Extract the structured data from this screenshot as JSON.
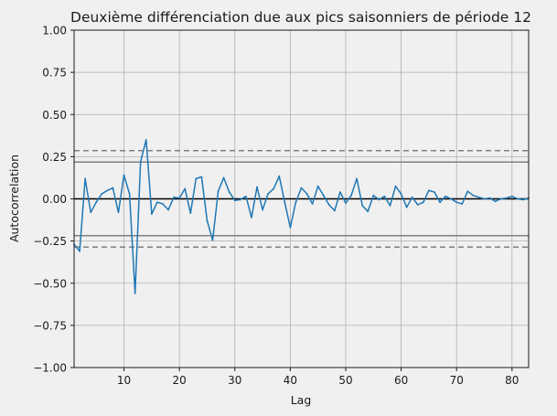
{
  "chart_data": {
    "type": "line",
    "title": "Deuxième différenciation due aux pics saisonniers de période 12",
    "xlabel": "Lag",
    "ylabel": "Autocorrelation",
    "xlim": [
      1,
      83
    ],
    "ylim": [
      -1.0,
      1.0
    ],
    "x_ticks": [
      10,
      20,
      30,
      40,
      50,
      60,
      70,
      80
    ],
    "y_ticks": [
      -1.0,
      -0.75,
      -0.5,
      -0.25,
      0.0,
      0.25,
      0.5,
      0.75,
      1.0
    ],
    "x_tick_labels": [
      "10",
      "20",
      "30",
      "40",
      "50",
      "60",
      "70",
      "80"
    ],
    "y_tick_labels": [
      "−1.00",
      "−0.75",
      "−0.50",
      "−0.25",
      "0.00",
      "0.25",
      "0.50",
      "0.75",
      "1.00"
    ],
    "grid": true,
    "reference_lines": {
      "zero": 0.0,
      "solid": [
        0.218,
        -0.218
      ],
      "dashed": [
        0.286,
        -0.286
      ]
    },
    "colors": {
      "series": "#1f77b4",
      "background": "#f0f0f0",
      "grid": "#b0b0b0",
      "reference": "#808080",
      "zero": "#000000"
    },
    "series": [
      {
        "x": [
          1,
          2,
          3,
          4,
          5,
          6,
          7,
          8,
          9,
          10,
          11,
          12,
          13,
          14,
          15,
          16,
          17,
          18,
          19,
          20,
          21,
          22,
          23,
          24,
          25,
          26,
          27,
          28,
          29,
          30,
          31,
          32,
          33,
          34,
          35,
          36,
          37,
          38,
          39,
          40,
          41,
          42,
          43,
          44,
          45,
          46,
          47,
          48,
          49,
          50,
          51,
          52,
          53,
          54,
          55,
          56,
          57,
          58,
          59,
          60,
          61,
          62,
          63,
          64,
          65,
          66,
          67,
          68,
          69,
          70,
          71,
          72,
          73,
          74,
          75,
          76,
          77,
          78,
          79,
          80,
          81,
          82,
          83
        ],
        "values": [
          -0.27,
          -0.31,
          0.12,
          -0.08,
          -0.02,
          0.03,
          0.05,
          0.065,
          -0.08,
          0.14,
          0.03,
          -0.56,
          0.22,
          0.35,
          -0.09,
          -0.02,
          -0.03,
          -0.065,
          0.01,
          0.005,
          0.06,
          -0.085,
          0.12,
          0.13,
          -0.13,
          -0.245,
          0.045,
          0.125,
          0.04,
          -0.01,
          -0.005,
          0.015,
          -0.11,
          0.07,
          -0.065,
          0.03,
          0.06,
          0.135,
          -0.02,
          -0.17,
          -0.02,
          0.065,
          0.03,
          -0.03,
          0.075,
          0.02,
          -0.035,
          -0.07,
          0.04,
          -0.025,
          0.02,
          0.12,
          -0.04,
          -0.075,
          0.02,
          -0.005,
          0.015,
          -0.04,
          0.075,
          0.03,
          -0.05,
          0.01,
          -0.035,
          -0.02,
          0.05,
          0.04,
          -0.02,
          0.015,
          0.0,
          -0.02,
          -0.03,
          0.045,
          0.02,
          0.01,
          0.0,
          0.005,
          -0.015,
          0.0,
          0.005,
          0.015,
          0.0,
          -0.005,
          0.005
        ]
      }
    ]
  }
}
